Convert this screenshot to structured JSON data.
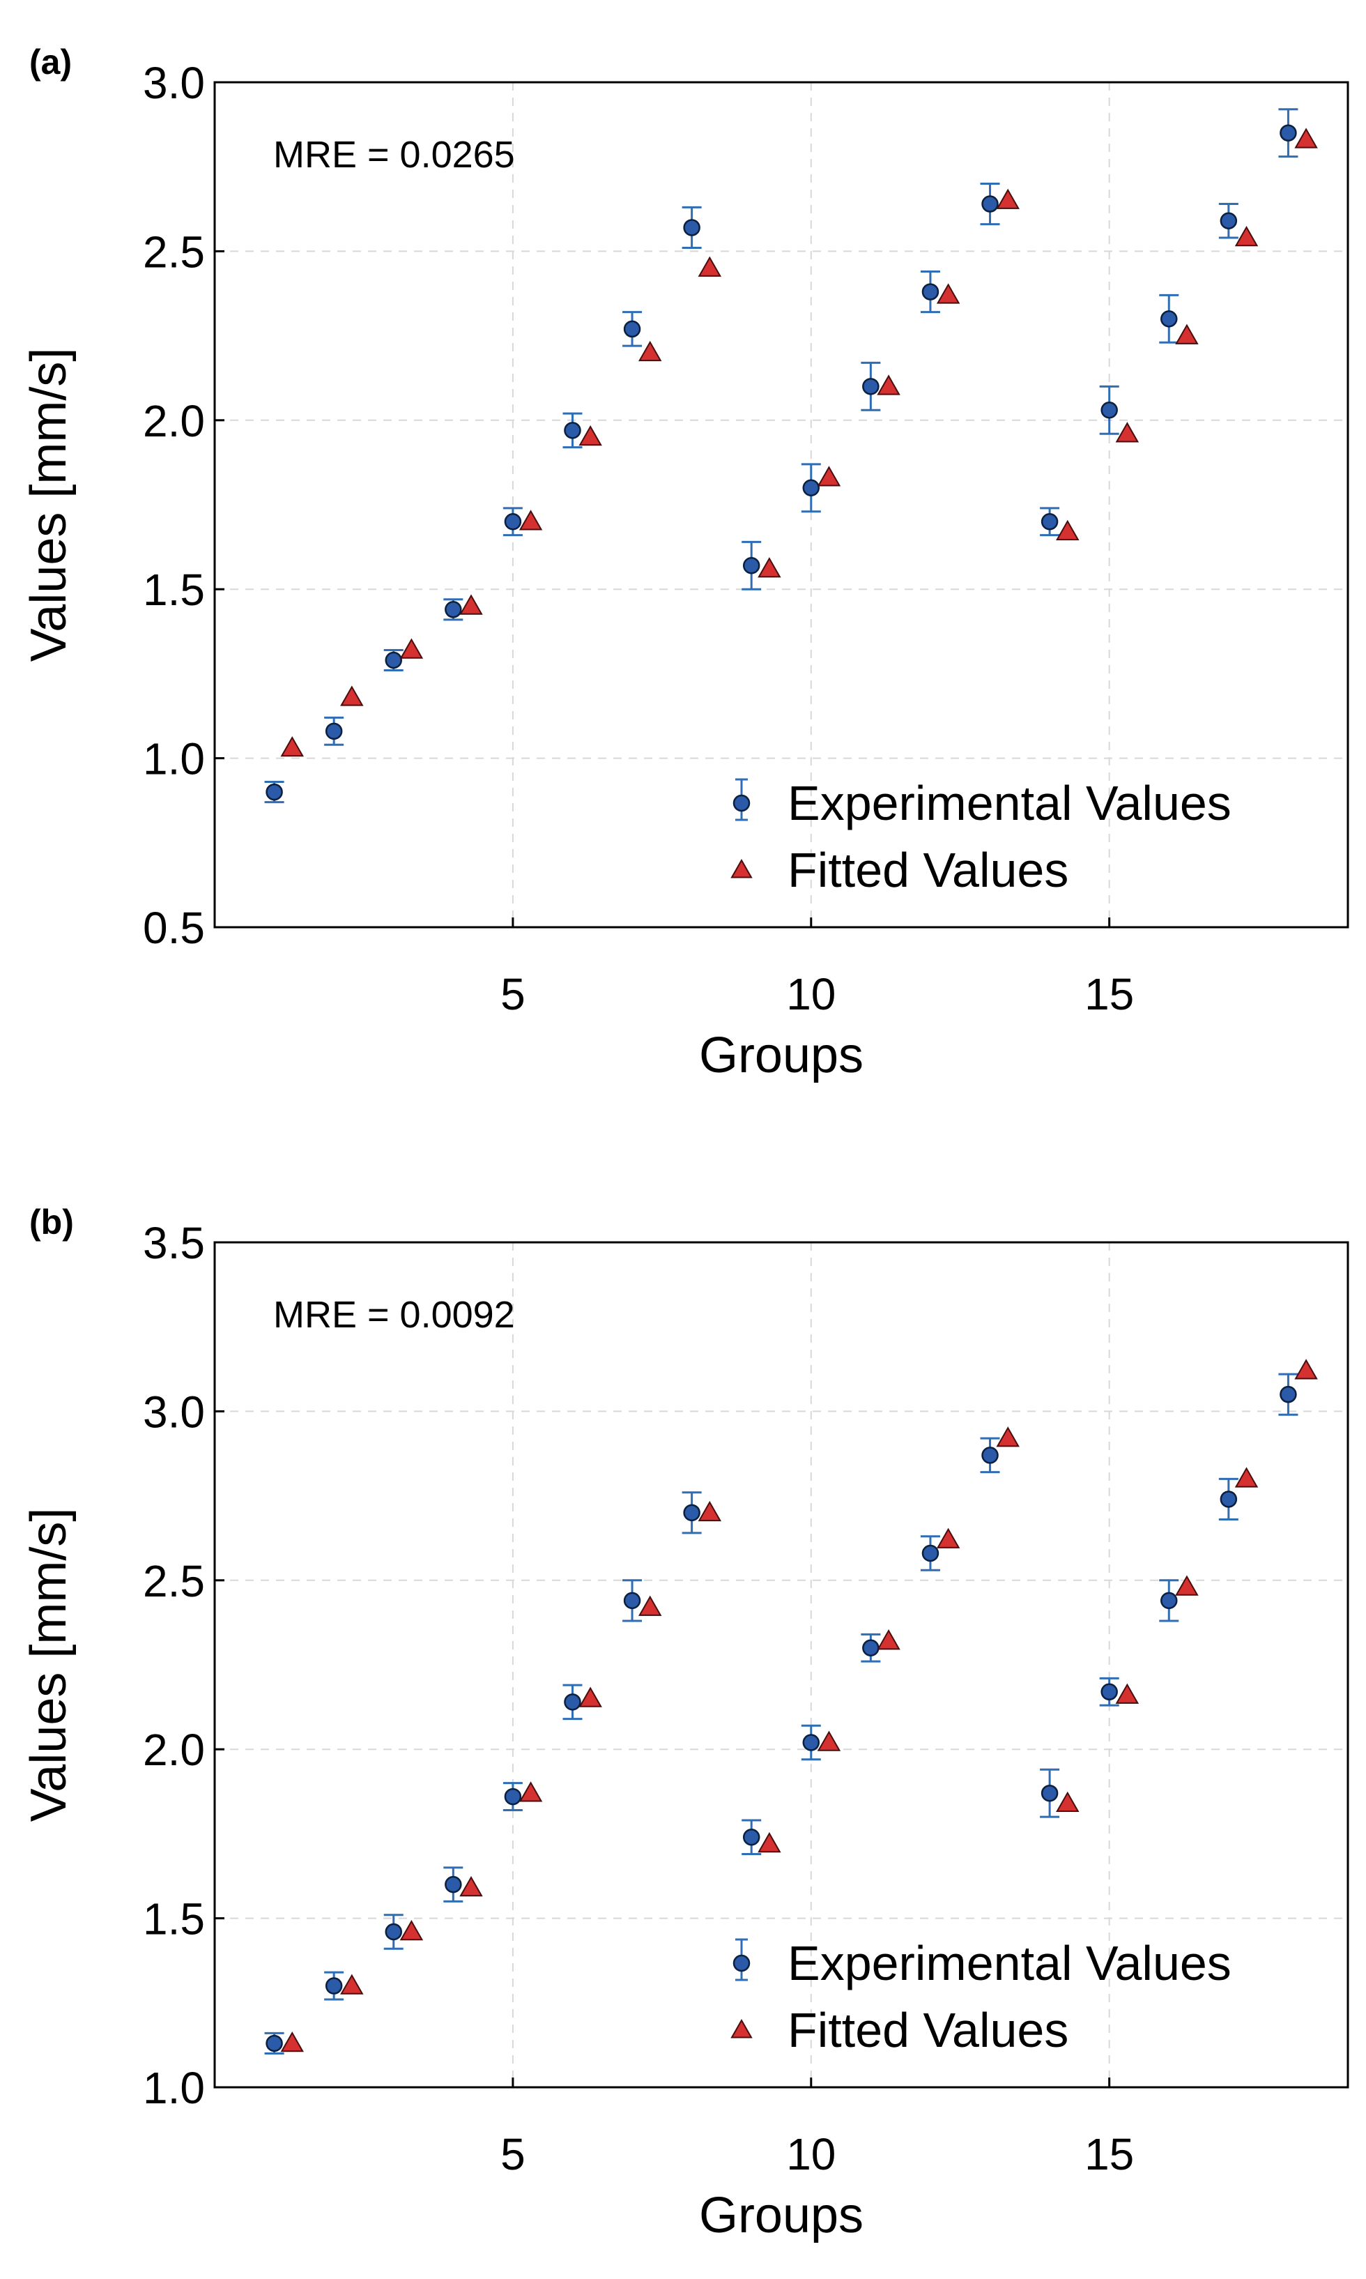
{
  "colors": {
    "experimental": "#2a5aa8",
    "experimental_edge": "#0b1f3f",
    "errorbar": "#2f6db5",
    "fitted": "#d63131",
    "fitted_edge": "#4a0d0d",
    "grid": "#d8d8d8",
    "axis": "#000000"
  },
  "chart_data": [
    {
      "type": "scatter",
      "panel_label": "(a)",
      "annotation": "MRE = 0.0265",
      "xlabel": "Groups",
      "ylabel": "Values [mm/s]",
      "xlim": [
        0,
        19
      ],
      "ylim": [
        0.5,
        3.0
      ],
      "x_ticks": [
        5,
        10,
        15
      ],
      "y_ticks": [
        0.5,
        1.0,
        1.5,
        2.0,
        2.5,
        3.0
      ],
      "y_tick_labels": [
        "0.5",
        "1.0",
        "1.5",
        "2.0",
        "2.5",
        "3.0"
      ],
      "grid": true,
      "legend_position": "lower-right",
      "x": [
        1,
        2,
        3,
        4,
        5,
        6,
        7,
        8,
        9,
        10,
        11,
        12,
        13,
        14,
        15,
        16,
        17,
        18
      ],
      "series": [
        {
          "name": "Experimental Values",
          "marker": "circle",
          "error_bars": true,
          "values": [
            0.9,
            1.08,
            1.29,
            1.44,
            1.7,
            1.97,
            2.27,
            2.57,
            1.57,
            1.8,
            2.1,
            2.38,
            2.64,
            1.7,
            2.03,
            2.3,
            2.59,
            2.85
          ],
          "errors": [
            0.03,
            0.04,
            0.03,
            0.03,
            0.04,
            0.05,
            0.05,
            0.06,
            0.07,
            0.07,
            0.07,
            0.06,
            0.06,
            0.04,
            0.07,
            0.07,
            0.05,
            0.07
          ]
        },
        {
          "name": "Fitted Values",
          "marker": "triangle",
          "x_offset": 0.3,
          "values": [
            1.03,
            1.18,
            1.32,
            1.45,
            1.7,
            1.95,
            2.2,
            2.45,
            1.56,
            1.83,
            2.1,
            2.37,
            2.65,
            1.67,
            1.96,
            2.25,
            2.54,
            2.83
          ]
        }
      ]
    },
    {
      "type": "scatter",
      "panel_label": "(b)",
      "annotation": "MRE = 0.0092",
      "xlabel": "Groups",
      "ylabel": "Values [mm/s]",
      "xlim": [
        0,
        19
      ],
      "ylim": [
        1.0,
        3.5
      ],
      "x_ticks": [
        5,
        10,
        15
      ],
      "y_ticks": [
        1.0,
        1.5,
        2.0,
        2.5,
        3.0,
        3.5
      ],
      "y_tick_labels": [
        "1.0",
        "1.5",
        "2.0",
        "2.5",
        "3.0",
        "3.5"
      ],
      "grid": true,
      "legend_position": "lower-right",
      "x": [
        1,
        2,
        3,
        4,
        5,
        6,
        7,
        8,
        9,
        10,
        11,
        12,
        13,
        14,
        15,
        16,
        17,
        18
      ],
      "series": [
        {
          "name": "Experimental Values",
          "marker": "circle",
          "error_bars": true,
          "values": [
            1.13,
            1.3,
            1.46,
            1.6,
            1.86,
            2.14,
            2.44,
            2.7,
            1.74,
            2.02,
            2.3,
            2.58,
            2.87,
            1.87,
            2.17,
            2.44,
            2.74,
            3.05
          ],
          "errors": [
            0.03,
            0.04,
            0.05,
            0.05,
            0.04,
            0.05,
            0.06,
            0.06,
            0.05,
            0.05,
            0.04,
            0.05,
            0.05,
            0.07,
            0.04,
            0.06,
            0.06,
            0.06
          ]
        },
        {
          "name": "Fitted Values",
          "marker": "triangle",
          "x_offset": 0.3,
          "values": [
            1.13,
            1.3,
            1.46,
            1.59,
            1.87,
            2.15,
            2.42,
            2.7,
            1.72,
            2.02,
            2.32,
            2.62,
            2.92,
            1.84,
            2.16,
            2.48,
            2.8,
            3.12
          ]
        }
      ]
    }
  ]
}
